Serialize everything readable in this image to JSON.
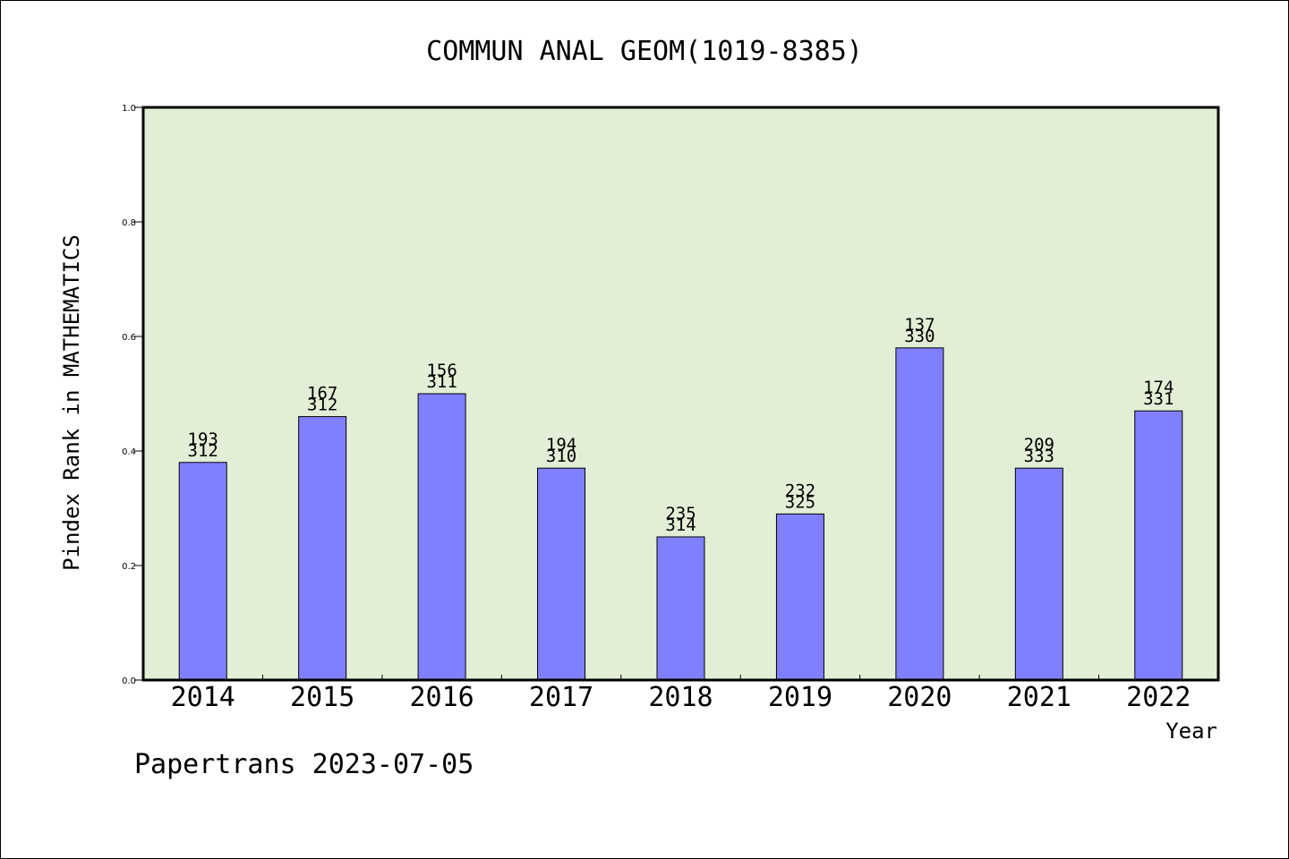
{
  "chart_data": {
    "type": "bar",
    "title": "COMMUN ANAL GEOM(1019-8385)",
    "xlabel": "Year",
    "ylabel": "Pindex Rank in MATHEMATICS",
    "ylim": [
      0,
      1.0
    ],
    "yticks": [
      "0.0",
      "0.2",
      "0.4",
      "0.6",
      "0.8",
      "1.0"
    ],
    "categories": [
      "2014",
      "2015",
      "2016",
      "2017",
      "2018",
      "2019",
      "2020",
      "2021",
      "2022"
    ],
    "values": [
      0.38,
      0.46,
      0.5,
      0.37,
      0.25,
      0.29,
      0.58,
      0.37,
      0.47
    ],
    "label_top": [
      "193",
      "167",
      "156",
      "194",
      "235",
      "232",
      "137",
      "209",
      "174"
    ],
    "label_bottom": [
      "312",
      "312",
      "311",
      "310",
      "314",
      "325",
      "330",
      "333",
      "331"
    ],
    "grid": false,
    "colors": {
      "plot_bg": "#e2efd6",
      "bar": "#8080ff",
      "bar_edge": "#000000"
    }
  },
  "footer": {
    "credit": "Papertrans 2023-07-05"
  }
}
